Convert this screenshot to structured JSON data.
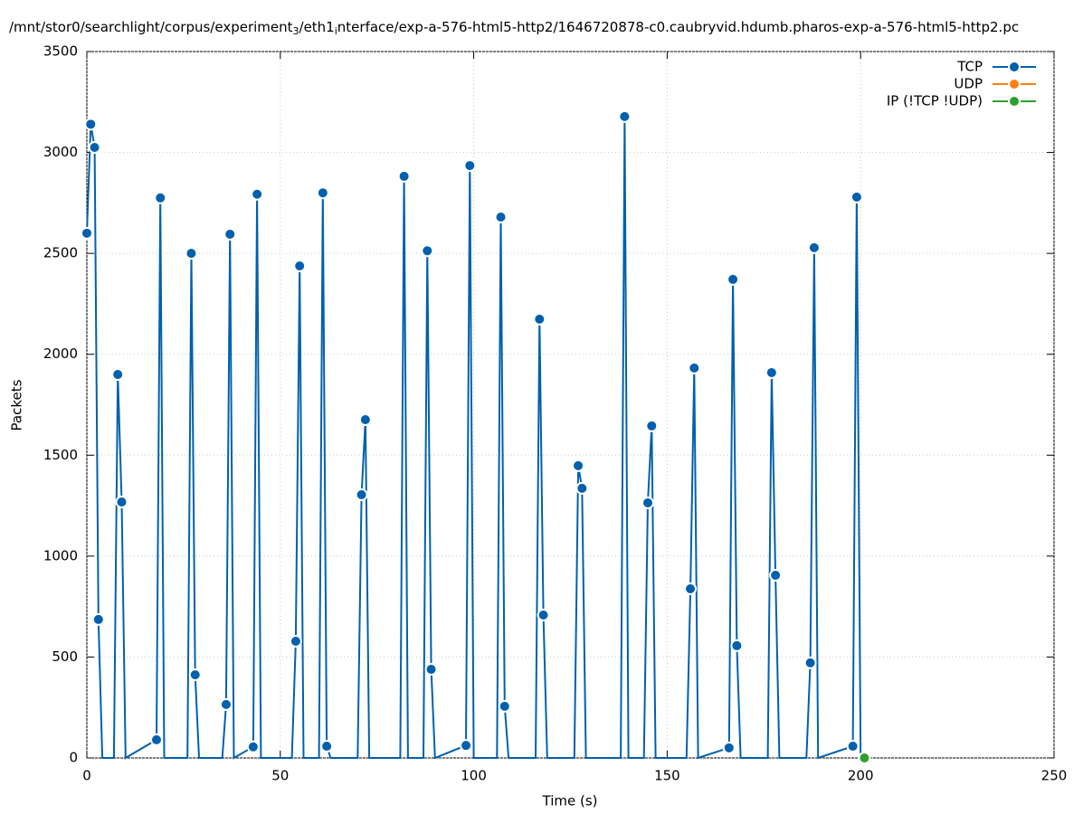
{
  "chart_data": {
    "type": "line",
    "title": [
      "/mnt/stor0/searchlight/corpus/experiment",
      "3",
      "/eth1",
      "i",
      "nterface/exp-a-576-html5-http2/1646720878-c0.caubryvid.hdumb.pharos-exp-a-576-html5-http2.pc"
    ],
    "x_label": "Time (s)",
    "y_label": "Packets",
    "xlim": [
      0,
      250
    ],
    "xticks": [
      0,
      50,
      100,
      150,
      200,
      250
    ],
    "ylim": [
      0,
      3500
    ],
    "yticks": [
      0,
      500,
      1000,
      1500,
      2000,
      2500,
      3000,
      3500
    ],
    "grid": true,
    "legend": "top-right",
    "series": [
      {
        "name": "TCP",
        "color": "#0060ad",
        "x": [
          0,
          1,
          2,
          3,
          4,
          7,
          8,
          9,
          10,
          18,
          19,
          20,
          26,
          27,
          28,
          29,
          35,
          36,
          37,
          38,
          43,
          44,
          45,
          53,
          54,
          55,
          56,
          60,
          61,
          62,
          63,
          70,
          71,
          72,
          73,
          81,
          82,
          83,
          87,
          88,
          89,
          90,
          98,
          99,
          100,
          106,
          107,
          108,
          109,
          116,
          117,
          118,
          119,
          126,
          127,
          128,
          129,
          138,
          139,
          140,
          144,
          145,
          146,
          147,
          155,
          156,
          157,
          158,
          166,
          167,
          168,
          169,
          176,
          177,
          178,
          179,
          186,
          187,
          188,
          189,
          198,
          199,
          200
        ],
        "values": [
          2600,
          3140,
          3025,
          686,
          0,
          0,
          1900,
          1268,
          0,
          90,
          2775,
          0,
          0,
          2500,
          412,
          0,
          0,
          265,
          2595,
          0,
          55,
          2793,
          0,
          0,
          578,
          2438,
          0,
          0,
          2800,
          58,
          0,
          0,
          1304,
          1676,
          0,
          0,
          2882,
          0,
          0,
          2513,
          439,
          0,
          62,
          2935,
          0,
          0,
          2680,
          256,
          0,
          0,
          2174,
          708,
          0,
          0,
          1448,
          1336,
          0,
          0,
          3178,
          0,
          0,
          1264,
          1645,
          0,
          0,
          838,
          1932,
          0,
          50,
          2371,
          556,
          0,
          0,
          1909,
          905,
          0,
          0,
          471,
          2528,
          0,
          58,
          2779,
          0
        ]
      },
      {
        "name": "UDP",
        "color": "#ff7f0e",
        "x": [],
        "values": []
      },
      {
        "name": "IP (!TCP  !UDP)",
        "color": "#2ca02c",
        "x": [
          201
        ],
        "values": [
          0
        ]
      }
    ]
  }
}
